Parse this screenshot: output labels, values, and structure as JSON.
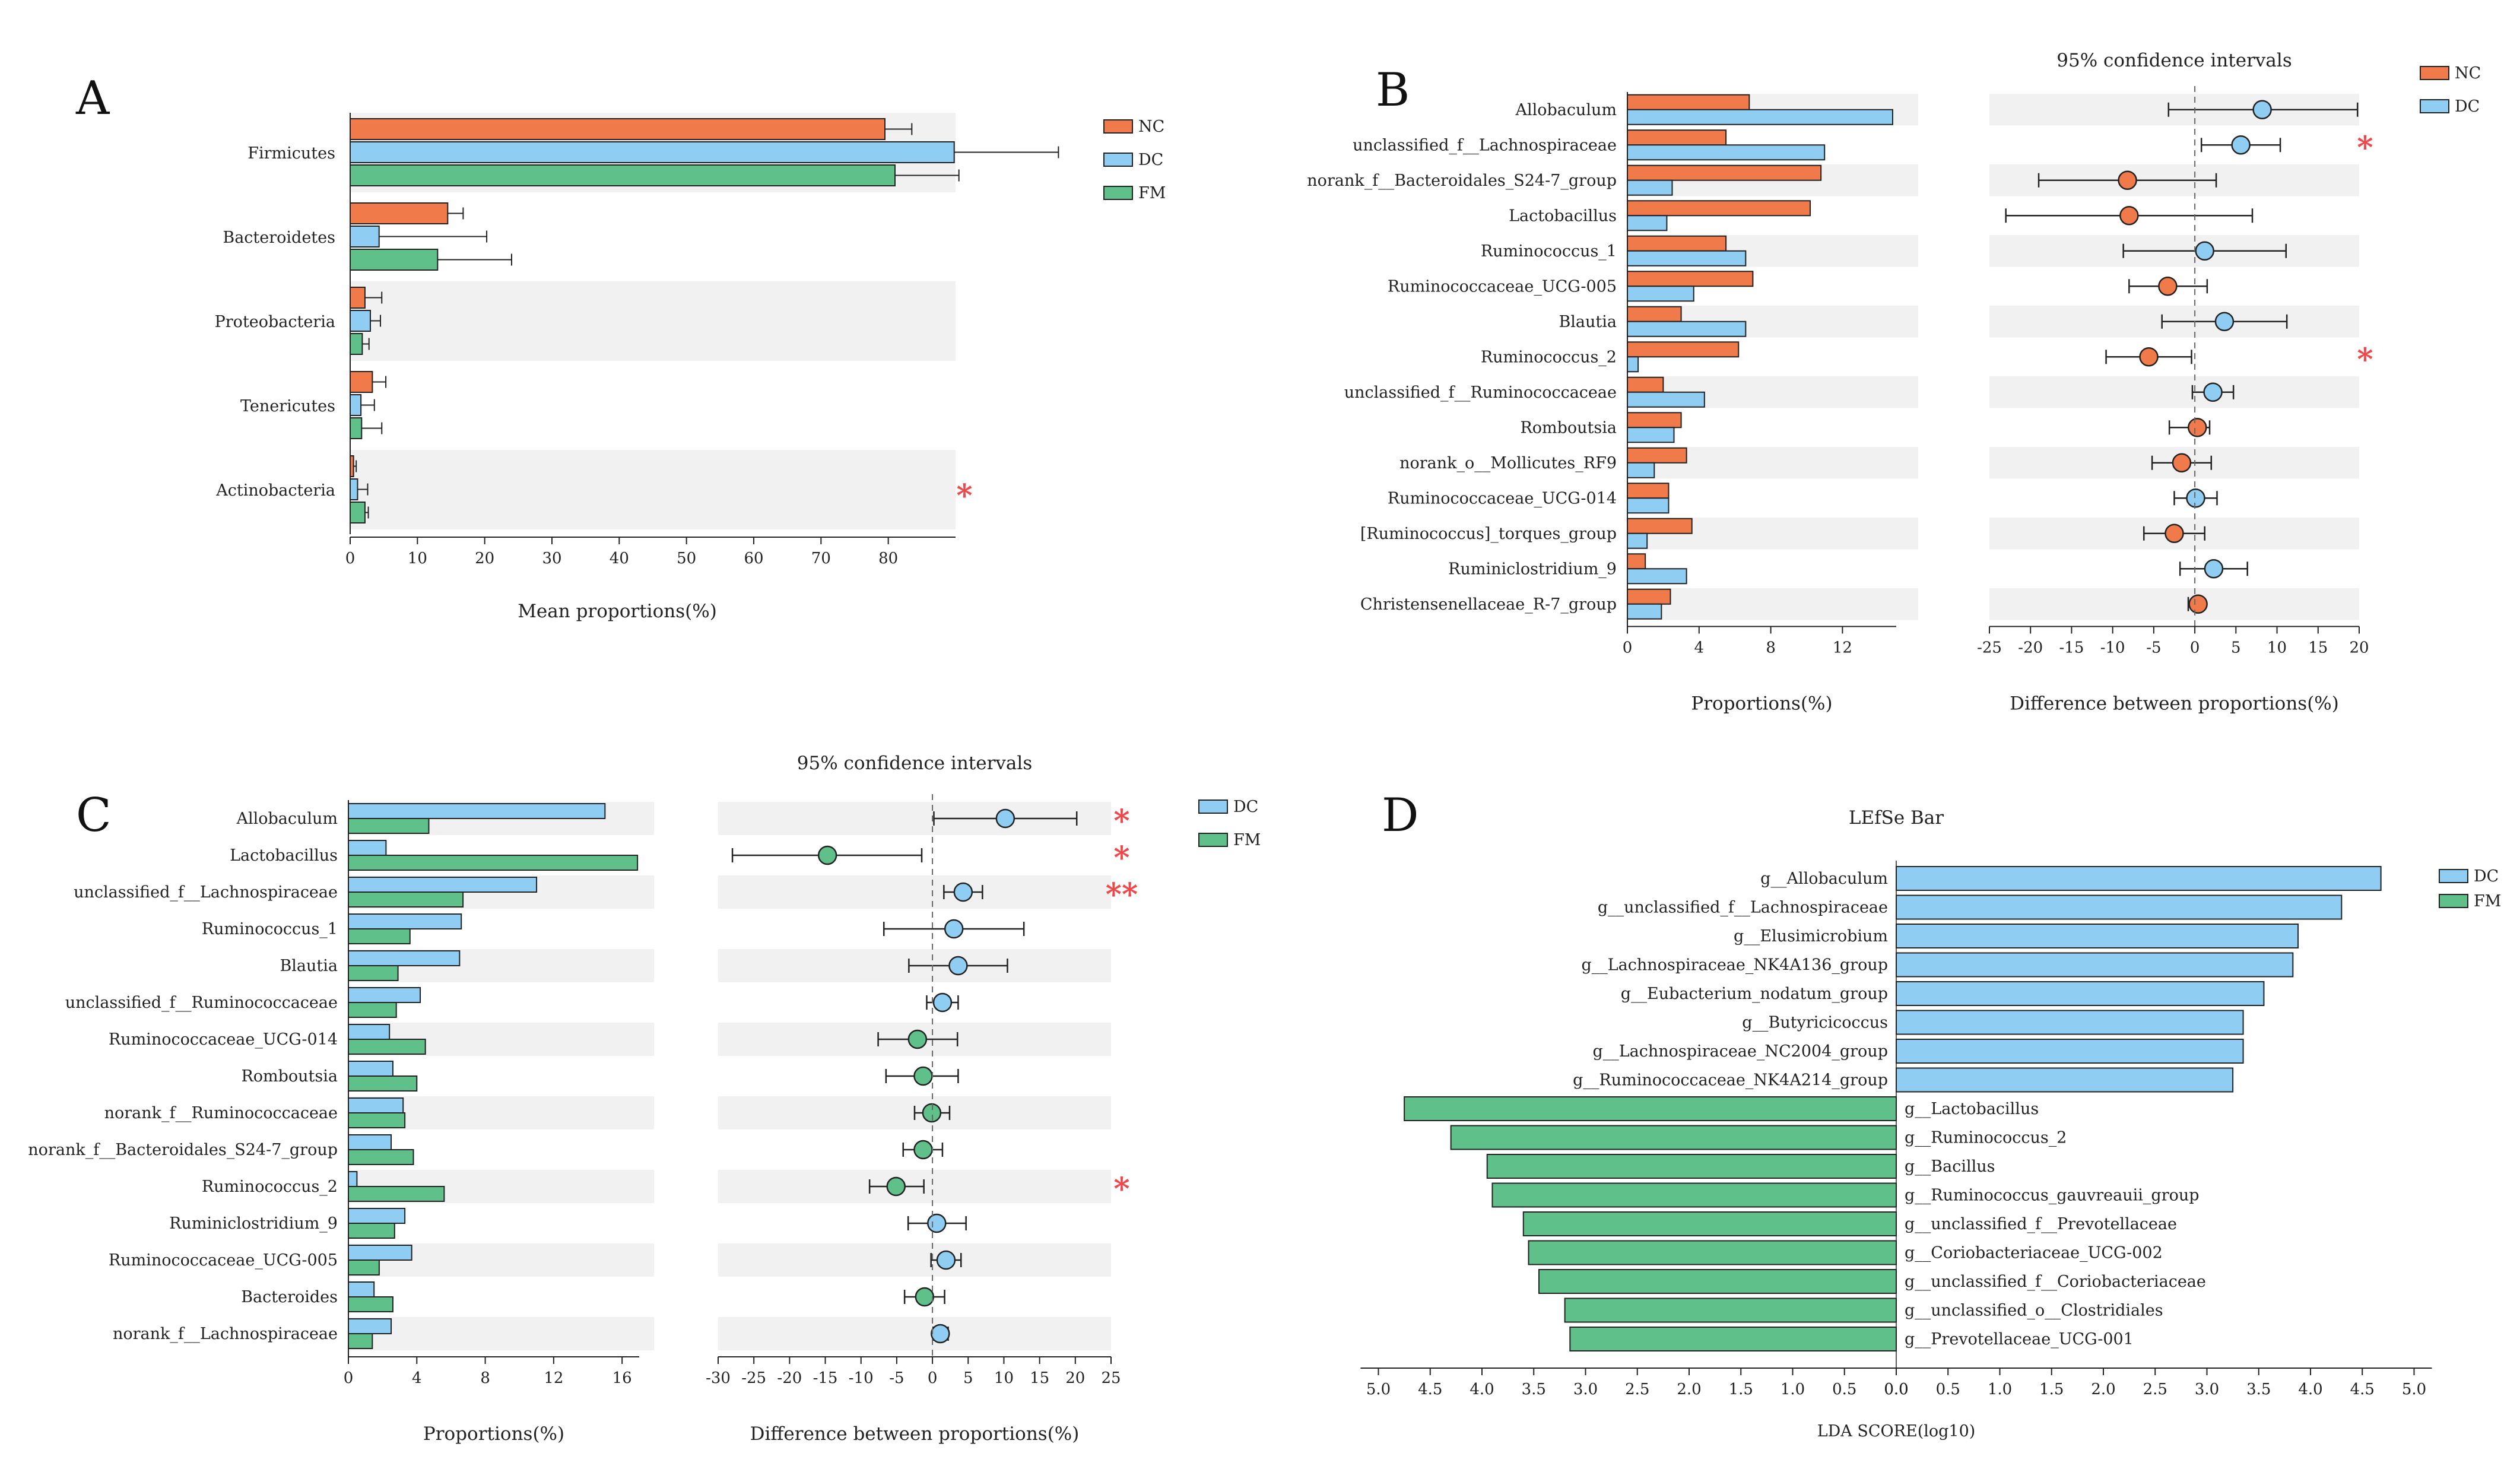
{
  "colors": {
    "NC": "#f07a4a",
    "DC": "#8fcdf3",
    "FM": "#5fc08a",
    "band": "#f1f1f1",
    "sig": "#f0484a"
  },
  "chart_data": [
    {
      "panel": "A",
      "type": "bar",
      "orientation": "horizontal",
      "categories": [
        "Firmicutes",
        "Bacteroidetes",
        "Proteobacteria",
        "Tenericutes",
        "Actinobacteria"
      ],
      "series": [
        {
          "name": "NC",
          "values": [
            79.5,
            14.5,
            2.2,
            3.3,
            0.5
          ],
          "errors": [
            4.0,
            2.3,
            2.5,
            2.0,
            0.4
          ]
        },
        {
          "name": "DC",
          "values": [
            89.8,
            4.3,
            3.0,
            1.6,
            1.1
          ],
          "errors": [
            15.5,
            16.0,
            1.5,
            2.0,
            1.5
          ]
        },
        {
          "name": "FM",
          "values": [
            81.0,
            13.0,
            1.8,
            1.7,
            2.2
          ],
          "errors": [
            9.5,
            11.0,
            1.0,
            3.0,
            0.5
          ]
        }
      ],
      "significance": [
        "",
        "",
        "",
        "",
        "*"
      ],
      "xticks": [
        0,
        10,
        20,
        30,
        40,
        50,
        60,
        70,
        80
      ],
      "xlim": [
        0,
        90
      ],
      "xlabel": "Mean proportions(%)",
      "legend": [
        "NC",
        "DC",
        "FM"
      ]
    },
    {
      "panel": "B",
      "type": "bar",
      "subtype": "extended-error-bar",
      "categories": [
        "Allobaculum",
        "unclassified_f__Lachnospiraceae",
        "norank_f__Bacteroidales_S24-7_group",
        "Lactobacillus",
        "Ruminococcus_1",
        "Ruminococcaceae_UCG-005",
        "Blautia",
        "Ruminococcus_2",
        "unclassified_f__Ruminococcaceae",
        "Romboutsia",
        "norank_o__Mollicutes_RF9",
        "Ruminococcaceae_UCG-014",
        "[Ruminococcus]_torques_group",
        "Ruminiclostridium_9",
        "Christensenellaceae_R-7_group"
      ],
      "series": [
        {
          "name": "NC",
          "values": [
            6.8,
            5.5,
            10.8,
            10.2,
            5.5,
            7.0,
            3.0,
            6.2,
            2.0,
            3.0,
            3.3,
            2.3,
            3.6,
            1.0,
            2.4
          ]
        },
        {
          "name": "DC",
          "values": [
            14.8,
            11.0,
            2.5,
            2.2,
            6.6,
            3.7,
            6.6,
            0.6,
            4.3,
            2.6,
            1.5,
            2.3,
            1.1,
            3.3,
            1.9
          ]
        }
      ],
      "xticks": [
        0,
        4,
        8,
        12
      ],
      "xlim": [
        0,
        15
      ],
      "xlabel": "Proportions(%)",
      "ci_title": "95% confidence intervals",
      "ci": [
        {
          "diff": 8.2,
          "low": -3.2,
          "high": 19.8,
          "group": "DC"
        },
        {
          "diff": 5.6,
          "low": 0.8,
          "high": 10.4,
          "group": "DC"
        },
        {
          "diff": -8.2,
          "low": -19.0,
          "high": 2.6,
          "group": "NC"
        },
        {
          "diff": -8.0,
          "low": -23.0,
          "high": 7.0,
          "group": "NC"
        },
        {
          "diff": 1.2,
          "low": -8.7,
          "high": 11.1,
          "group": "DC"
        },
        {
          "diff": -3.3,
          "low": -8.0,
          "high": 1.5,
          "group": "NC"
        },
        {
          "diff": 3.6,
          "low": -4.0,
          "high": 11.2,
          "group": "DC"
        },
        {
          "diff": -5.6,
          "low": -10.8,
          "high": -0.4,
          "group": "NC"
        },
        {
          "diff": 2.2,
          "low": -0.3,
          "high": 4.7,
          "group": "DC"
        },
        {
          "diff": 0.3,
          "low": -3.1,
          "high": 1.8,
          "group": "NC"
        },
        {
          "diff": -1.6,
          "low": -5.2,
          "high": 2.0,
          "group": "NC"
        },
        {
          "diff": 0.1,
          "low": -2.5,
          "high": 2.7,
          "group": "DC"
        },
        {
          "diff": -2.5,
          "low": -6.2,
          "high": 1.2,
          "group": "NC"
        },
        {
          "diff": 2.3,
          "low": -1.8,
          "high": 6.4,
          "group": "DC"
        },
        {
          "diff": 0.4,
          "low": -0.8,
          "high": 0.8,
          "group": "NC"
        }
      ],
      "ci_xticks": [
        -25,
        -20,
        -15,
        -10,
        -5,
        0,
        5,
        10,
        15,
        20
      ],
      "ci_xlim": [
        -25,
        20
      ],
      "ci_xlabel": "Difference between proportions(%)",
      "significance": [
        "",
        "*",
        "",
        "",
        "",
        "",
        "",
        "*",
        "",
        "",
        "",
        "",
        "",
        "",
        ""
      ],
      "legend": [
        "NC",
        "DC"
      ]
    },
    {
      "panel": "C",
      "type": "bar",
      "subtype": "extended-error-bar",
      "categories": [
        "Allobaculum",
        "Lactobacillus",
        "unclassified_f__Lachnospiraceae",
        "Ruminococcus_1",
        "Blautia",
        "unclassified_f__Ruminococcaceae",
        "Ruminococcaceae_UCG-014",
        "Romboutsia",
        "norank_f__Ruminococcaceae",
        "norank_f__Bacteroidales_S24-7_group",
        "Ruminococcus_2",
        "Ruminiclostridium_9",
        "Ruminococcaceae_UCG-005",
        "Bacteroides",
        "norank_f__Lachnospiraceae"
      ],
      "series": [
        {
          "name": "DC",
          "values": [
            15.0,
            2.2,
            11.0,
            6.6,
            6.5,
            4.2,
            2.4,
            2.6,
            3.2,
            2.5,
            0.5,
            3.3,
            3.7,
            1.5,
            2.5
          ]
        },
        {
          "name": "FM",
          "values": [
            4.7,
            16.9,
            6.7,
            3.6,
            2.9,
            2.8,
            4.5,
            4.0,
            3.3,
            3.8,
            5.6,
            2.7,
            1.8,
            2.6,
            1.4
          ]
        }
      ],
      "xticks": [
        0,
        4,
        8,
        12,
        16
      ],
      "xlim": [
        0,
        17
      ],
      "xlabel": "Proportions(%)",
      "ci_title": "95% confidence intervals",
      "ci": [
        {
          "diff": 10.2,
          "low": 0.2,
          "high": 20.2,
          "group": "DC"
        },
        {
          "diff": -14.7,
          "low": -28.0,
          "high": -1.5,
          "group": "FM"
        },
        {
          "diff": 4.3,
          "low": 1.6,
          "high": 7.0,
          "group": "DC"
        },
        {
          "diff": 3.0,
          "low": -6.8,
          "high": 12.8,
          "group": "DC"
        },
        {
          "diff": 3.6,
          "low": -3.3,
          "high": 10.5,
          "group": "DC"
        },
        {
          "diff": 1.4,
          "low": -0.8,
          "high": 3.6,
          "group": "DC"
        },
        {
          "diff": -2.1,
          "low": -7.6,
          "high": 3.5,
          "group": "FM"
        },
        {
          "diff": -1.3,
          "low": -6.5,
          "high": 3.6,
          "group": "FM"
        },
        {
          "diff": -0.1,
          "low": -2.5,
          "high": 2.4,
          "group": "FM"
        },
        {
          "diff": -1.3,
          "low": -4.1,
          "high": 1.4,
          "group": "FM"
        },
        {
          "diff": -5.1,
          "low": -8.8,
          "high": -1.2,
          "group": "FM"
        },
        {
          "diff": 0.6,
          "low": -3.4,
          "high": 4.7,
          "group": "DC"
        },
        {
          "diff": 1.9,
          "low": -0.2,
          "high": 4.0,
          "group": "DC"
        },
        {
          "diff": -1.1,
          "low": -3.9,
          "high": 1.7,
          "group": "FM"
        },
        {
          "diff": 1.1,
          "low": 0.1,
          "high": 2.2,
          "group": "DC"
        }
      ],
      "ci_xticks": [
        -30,
        -25,
        -20,
        -15,
        -10,
        -5,
        0,
        5,
        10,
        15,
        20,
        25
      ],
      "ci_xlim": [
        -30,
        25
      ],
      "ci_xlabel": "Difference between proportions(%)",
      "significance": [
        "*",
        "*",
        "**",
        "",
        "",
        "",
        "",
        "",
        "",
        "",
        "*",
        "",
        "",
        "",
        ""
      ],
      "legend": [
        "DC",
        "FM"
      ]
    },
    {
      "panel": "D",
      "type": "bar",
      "subtype": "lefse",
      "title": "LEfSe Bar",
      "xlabel": "LDA SCORE(log10)",
      "xticks_left": [
        "5.0",
        "4.5",
        "4.0",
        "3.5",
        "3.0",
        "2.5",
        "2.0",
        "1.5",
        "1.0",
        "0.5",
        "0.0"
      ],
      "xticks_right": [
        "0.0",
        "0.5",
        "1.0",
        "1.5",
        "2.0",
        "2.5",
        "3.0",
        "3.5",
        "4.0",
        "4.5",
        "5.0"
      ],
      "xlim": [
        -5.0,
        5.0
      ],
      "features": [
        {
          "name": "g__Allobaculum",
          "group": "DC",
          "lda": 4.68
        },
        {
          "name": "g__unclassified_f__Lachnospiraceae",
          "group": "DC",
          "lda": 4.3
        },
        {
          "name": "g__Elusimicrobium",
          "group": "DC",
          "lda": 3.88
        },
        {
          "name": "g__Lachnospiraceae_NK4A136_group",
          "group": "DC",
          "lda": 3.83
        },
        {
          "name": "g__Eubacterium_nodatum_group",
          "group": "DC",
          "lda": 3.55
        },
        {
          "name": "g__Butyricicoccus",
          "group": "DC",
          "lda": 3.35
        },
        {
          "name": "g__Lachnospiraceae_NC2004_group",
          "group": "DC",
          "lda": 3.35
        },
        {
          "name": "g__Ruminococcaceae_NK4A214_group",
          "group": "DC",
          "lda": 3.25
        },
        {
          "name": "g__Lactobacillus",
          "group": "FM",
          "lda": 4.75
        },
        {
          "name": "g__Ruminococcus_2",
          "group": "FM",
          "lda": 4.3
        },
        {
          "name": "g__Bacillus",
          "group": "FM",
          "lda": 3.95
        },
        {
          "name": "g__Ruminococcus_gauvreauii_group",
          "group": "FM",
          "lda": 3.9
        },
        {
          "name": "g__unclassified_f__Prevotellaceae",
          "group": "FM",
          "lda": 3.6
        },
        {
          "name": "g__Coriobacteriaceae_UCG-002",
          "group": "FM",
          "lda": 3.55
        },
        {
          "name": "g__unclassified_f__Coriobacteriaceae",
          "group": "FM",
          "lda": 3.45
        },
        {
          "name": "g__unclassified_o__Clostridiales",
          "group": "FM",
          "lda": 3.2
        },
        {
          "name": "g__Prevotellaceae_UCG-001",
          "group": "FM",
          "lda": 3.15
        }
      ],
      "legend": [
        "DC",
        "FM"
      ]
    }
  ]
}
